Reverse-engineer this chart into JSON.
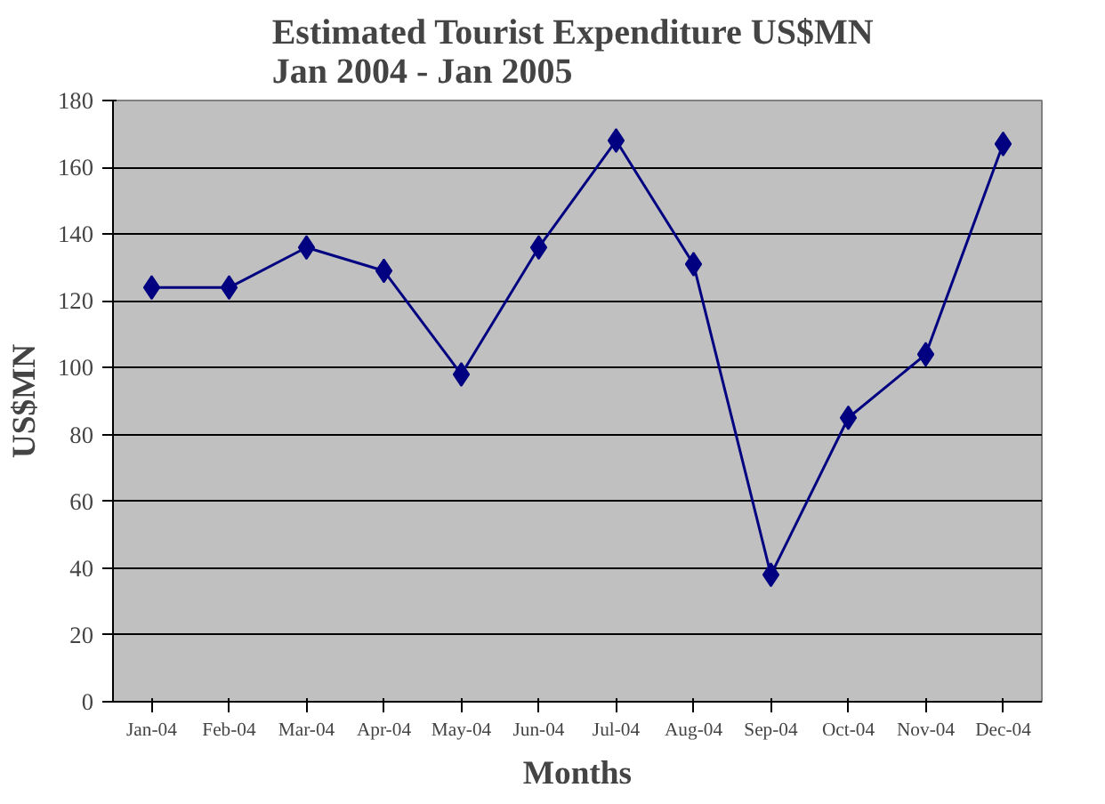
{
  "chart_data": {
    "type": "line",
    "title": "Estimated Tourist  Expenditure US$MN\nJan 2004 - Jan 2005",
    "xlabel": "Months",
    "ylabel": "US$MN",
    "categories": [
      "Jan-04",
      "Feb-04",
      "Mar-04",
      "Apr-04",
      "May-04",
      "Jun-04",
      "Jul-04",
      "Aug-04",
      "Sep-04",
      "Oct-04",
      "Nov-04",
      "Dec-04"
    ],
    "series": [
      {
        "color": "#000080",
        "values": [
          124,
          124,
          136,
          129,
          98,
          136,
          168,
          131,
          38,
          85,
          104,
          167
        ]
      }
    ],
    "ylim": [
      0,
      180
    ],
    "yticks": [
      0,
      20,
      40,
      60,
      80,
      100,
      120,
      140,
      160,
      180
    ],
    "grid": "y",
    "marker": "diamond",
    "line_style": "solid"
  }
}
